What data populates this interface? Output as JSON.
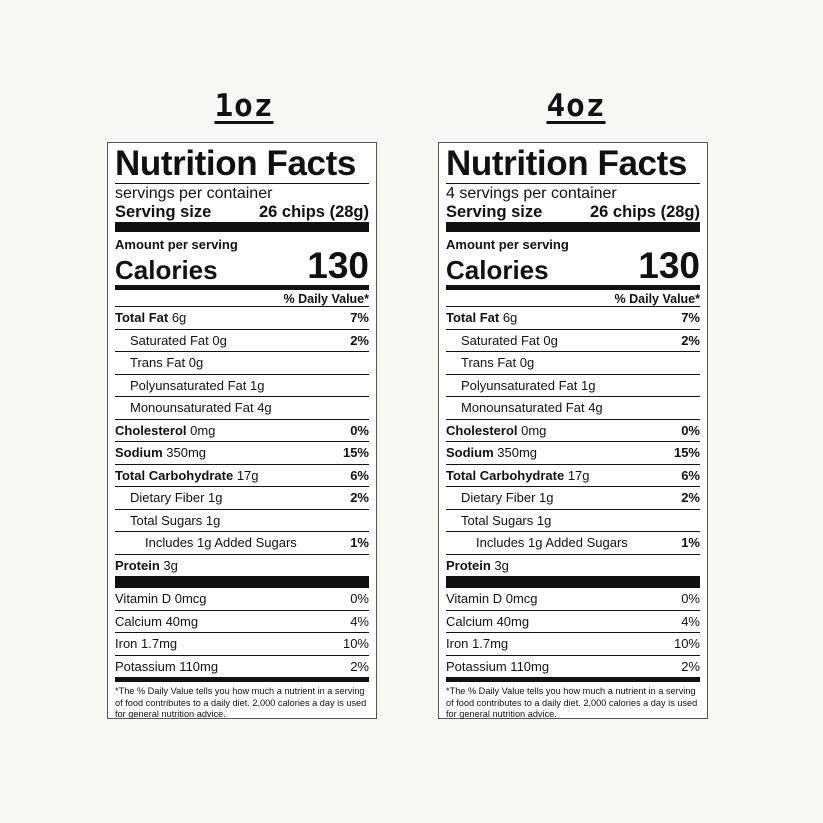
{
  "headings": [
    "1oz",
    "4oz"
  ],
  "labels": [
    {
      "title": "Nutrition Facts",
      "servings_per_container": "servings per container",
      "serving_size_label": "Serving size",
      "serving_size_value": "26 chips (28g)",
      "amount_per_serving": "Amount per serving",
      "calories_label": "Calories",
      "calories_value": "130",
      "daily_value_header": "% Daily Value*",
      "total_fat": {
        "label": "Total Fat",
        "amount": " 6g",
        "pct": "7%"
      },
      "saturated_fat": {
        "text": "Saturated Fat 0g",
        "pct": "2%"
      },
      "trans_fat": {
        "text": "Trans Fat 0g"
      },
      "polyunsaturated_fat": {
        "text": "Polyunsaturated Fat 1g"
      },
      "monounsaturated_fat": {
        "text": "Monounsaturated Fat 4g"
      },
      "cholesterol": {
        "label": "Cholesterol",
        "amount": " 0mg",
        "pct": "0%"
      },
      "sodium": {
        "label": "Sodium",
        "amount": " 350mg",
        "pct": "15%"
      },
      "total_carbohydrate": {
        "label": "Total Carbohydrate",
        "amount": " 17g",
        "pct": "6%"
      },
      "dietary_fiber": {
        "text": "Dietary Fiber 1g",
        "pct": "2%"
      },
      "total_sugars": {
        "text": "Total Sugars 1g"
      },
      "added_sugars": {
        "text": "Includes 1g Added Sugars",
        "pct": "1%"
      },
      "protein": {
        "label": "Protein",
        "amount": " 3g"
      },
      "vitamin_d": {
        "text": "Vitamin D 0mcg",
        "pct": "0%"
      },
      "calcium": {
        "text": "Calcium 40mg",
        "pct": "4%"
      },
      "iron": {
        "text": "Iron 1.7mg",
        "pct": "10%"
      },
      "potassium": {
        "text": "Potassium 110mg",
        "pct": "2%"
      },
      "footnote": "*The % Daily Value tells you how much a nutrient in a serving of food contributes to a daily diet. 2,000 calories a day is used for general nutrition advice."
    },
    {
      "title": "Nutrition Facts",
      "servings_per_container": "4 servings per container",
      "serving_size_label": "Serving size",
      "serving_size_value": "26 chips (28g)",
      "amount_per_serving": "Amount per serving",
      "calories_label": "Calories",
      "calories_value": "130",
      "daily_value_header": "% Daily Value*",
      "total_fat": {
        "label": "Total Fat",
        "amount": " 6g",
        "pct": "7%"
      },
      "saturated_fat": {
        "text": "Saturated Fat 0g",
        "pct": "2%"
      },
      "trans_fat": {
        "text": "Trans Fat 0g"
      },
      "polyunsaturated_fat": {
        "text": "Polyunsaturated Fat 1g"
      },
      "monounsaturated_fat": {
        "text": "Monounsaturated Fat 4g"
      },
      "cholesterol": {
        "label": "Cholesterol",
        "amount": " 0mg",
        "pct": "0%"
      },
      "sodium": {
        "label": "Sodium",
        "amount": " 350mg",
        "pct": "15%"
      },
      "total_carbohydrate": {
        "label": "Total Carbohydrate",
        "amount": " 17g",
        "pct": "6%"
      },
      "dietary_fiber": {
        "text": "Dietary Fiber 1g",
        "pct": "2%"
      },
      "total_sugars": {
        "text": "Total Sugars 1g"
      },
      "added_sugars": {
        "text": "Includes 1g Added Sugars",
        "pct": "1%"
      },
      "protein": {
        "label": "Protein",
        "amount": " 3g"
      },
      "vitamin_d": {
        "text": "Vitamin D 0mcg",
        "pct": "0%"
      },
      "calcium": {
        "text": "Calcium 40mg",
        "pct": "4%"
      },
      "iron": {
        "text": "Iron 1.7mg",
        "pct": "10%"
      },
      "potassium": {
        "text": "Potassium 110mg",
        "pct": "2%"
      },
      "footnote": "*The % Daily Value tells you how much a nutrient in a serving of food contributes to a daily diet. 2,000 calories a day is used for general nutrition advice."
    }
  ]
}
